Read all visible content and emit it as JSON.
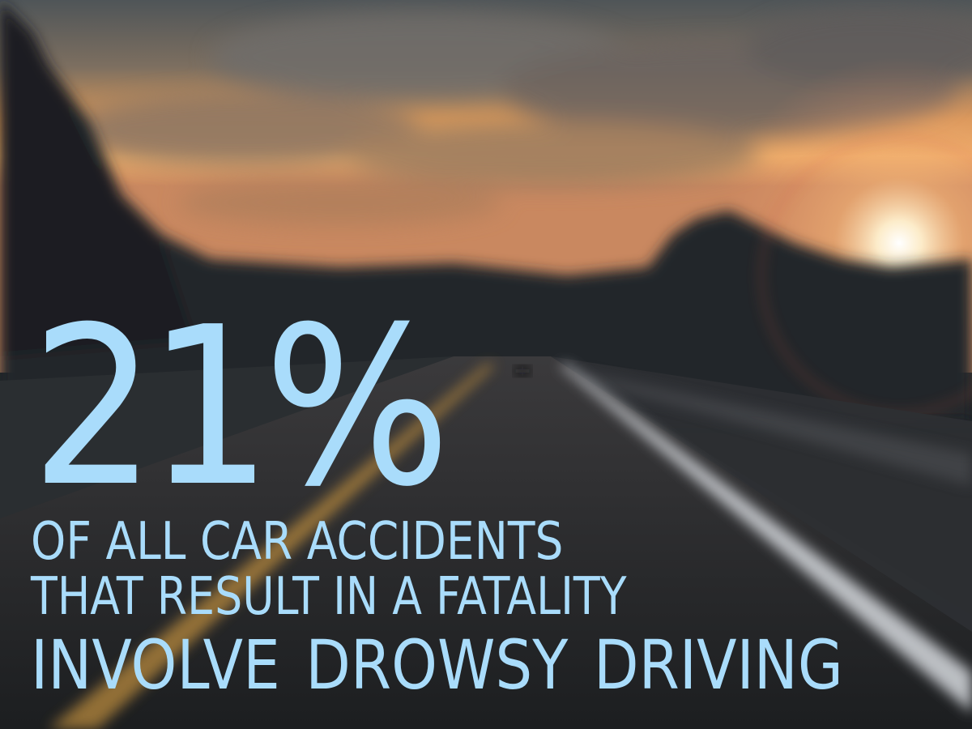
{
  "stat": {
    "value": "21%"
  },
  "caption": {
    "line1": "OF ALL CAR ACCIDENTS",
    "line2": "THAT RESULT IN A FATALITY",
    "line3": "INVOLVE  DROWSY DRIVING"
  },
  "colors": {
    "text": "#a9dcfb",
    "sky_top": "#5a5f62",
    "sky_glow": "#f2a35c",
    "sun": "#fff2d0",
    "trees": "#23272a",
    "road": "#2a2d30",
    "center_line": "#b98a3c",
    "edge_line": "#d8dbe0"
  }
}
